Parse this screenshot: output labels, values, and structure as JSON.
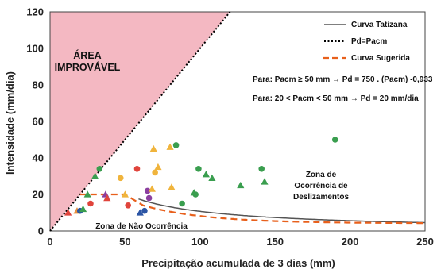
{
  "chart_data": {
    "type": "scatter",
    "xlabel": "Precipitação acumulada de 3 dias (mm)",
    "ylabel": "Intensidade (mm/dia)",
    "xlim": [
      0,
      250
    ],
    "ylim": [
      0,
      120
    ],
    "xticks": [
      0,
      50,
      100,
      150,
      200,
      250
    ],
    "yticks": [
      0,
      20,
      40,
      60,
      80,
      100,
      120
    ],
    "area_label_line1": "ÁREA",
    "area_label_line2": "IMPROVÁVEL",
    "legend_position": "top-right",
    "legend": [
      {
        "label": "Curva Tatizana",
        "color": "#555555",
        "style": "solid"
      },
      {
        "label": "Pd=Pacm",
        "color": "#000000",
        "style": "dotted"
      },
      {
        "label": "Curva Sugerida",
        "color": "#e8601c",
        "style": "dashed"
      }
    ],
    "equation1": "Para: Pacm ≥ 50 mm → Pd = 750 . (Pacm) -0,933",
    "equation2": "Para: 20 < Pacm < 50 mm → Pd = 20 mm/dia",
    "zone_high_lines": [
      "Zona de",
      "Ocorrência de",
      "Deslizamentos"
    ],
    "zone_low": "Zona de Não Ocorrência",
    "series": [
      {
        "name": "Pd=Pacm",
        "type": "line",
        "x": [
          0,
          120
        ],
        "y": [
          0,
          120
        ],
        "color": "#000000"
      },
      {
        "name": "Curva Tatizana",
        "type": "line",
        "formula": "750*x^-0.933 (approx.)",
        "x_range": [
          59,
          250
        ],
        "color": "#555555"
      },
      {
        "name": "Curva Sugerida",
        "type": "line",
        "x_range": [
          20,
          250
        ],
        "color": "#e8601c"
      }
    ],
    "points": [
      {
        "x": 12,
        "y": 10,
        "shape": "triangle",
        "color": "#e0443c"
      },
      {
        "x": 18,
        "y": 11,
        "shape": "triangle",
        "color": "#e8903c"
      },
      {
        "x": 20,
        "y": 11,
        "shape": "circle",
        "color": "#2b55a5"
      },
      {
        "x": 22,
        "y": 12,
        "shape": "triangle",
        "color": "#3a9e4f"
      },
      {
        "x": 25,
        "y": 20,
        "shape": "triangle",
        "color": "#3a9e4f"
      },
      {
        "x": 27,
        "y": 15,
        "shape": "circle",
        "color": "#e0443c"
      },
      {
        "x": 30,
        "y": 30,
        "shape": "triangle",
        "color": "#3a9e4f"
      },
      {
        "x": 33,
        "y": 34,
        "shape": "circle",
        "color": "#3a9e4f"
      },
      {
        "x": 37,
        "y": 20,
        "shape": "triangle",
        "color": "#8b3fa0"
      },
      {
        "x": 38,
        "y": 18,
        "shape": "triangle",
        "color": "#e0443c"
      },
      {
        "x": 47,
        "y": 29,
        "shape": "circle",
        "color": "#f0b43c"
      },
      {
        "x": 50,
        "y": 20,
        "shape": "triangle",
        "color": "#f0b43c"
      },
      {
        "x": 52,
        "y": 14,
        "shape": "circle",
        "color": "#e0443c"
      },
      {
        "x": 58,
        "y": 34,
        "shape": "circle",
        "color": "#e0443c"
      },
      {
        "x": 60,
        "y": 10,
        "shape": "triangle",
        "color": "#2b55a5"
      },
      {
        "x": 63,
        "y": 11,
        "shape": "circle",
        "color": "#2b55a5"
      },
      {
        "x": 65,
        "y": 22,
        "shape": "circle",
        "color": "#8b3fa0"
      },
      {
        "x": 66,
        "y": 18,
        "shape": "circle",
        "color": "#8b3fa0"
      },
      {
        "x": 68,
        "y": 23,
        "shape": "triangle",
        "color": "#f0b43c"
      },
      {
        "x": 69,
        "y": 45,
        "shape": "triangle",
        "color": "#f0b43c"
      },
      {
        "x": 70,
        "y": 32,
        "shape": "circle",
        "color": "#f0b43c"
      },
      {
        "x": 72,
        "y": 35,
        "shape": "triangle",
        "color": "#f0b43c"
      },
      {
        "x": 80,
        "y": 46,
        "shape": "triangle",
        "color": "#f0b43c"
      },
      {
        "x": 81,
        "y": 24,
        "shape": "triangle",
        "color": "#f0b43c"
      },
      {
        "x": 84,
        "y": 47,
        "shape": "circle",
        "color": "#3a9e4f"
      },
      {
        "x": 88,
        "y": 15,
        "shape": "circle",
        "color": "#3a9e4f"
      },
      {
        "x": 96,
        "y": 21,
        "shape": "triangle",
        "color": "#3a9e4f"
      },
      {
        "x": 97,
        "y": 20,
        "shape": "circle",
        "color": "#3a9e4f"
      },
      {
        "x": 99,
        "y": 34,
        "shape": "circle",
        "color": "#3a9e4f"
      },
      {
        "x": 104,
        "y": 31,
        "shape": "triangle",
        "color": "#3a9e4f"
      },
      {
        "x": 108,
        "y": 29,
        "shape": "triangle",
        "color": "#3a9e4f"
      },
      {
        "x": 127,
        "y": 25,
        "shape": "triangle",
        "color": "#3a9e4f"
      },
      {
        "x": 141,
        "y": 34,
        "shape": "circle",
        "color": "#3a9e4f"
      },
      {
        "x": 143,
        "y": 27,
        "shape": "triangle",
        "color": "#3a9e4f"
      },
      {
        "x": 190,
        "y": 50,
        "shape": "circle",
        "color": "#3a9e4f"
      }
    ]
  }
}
